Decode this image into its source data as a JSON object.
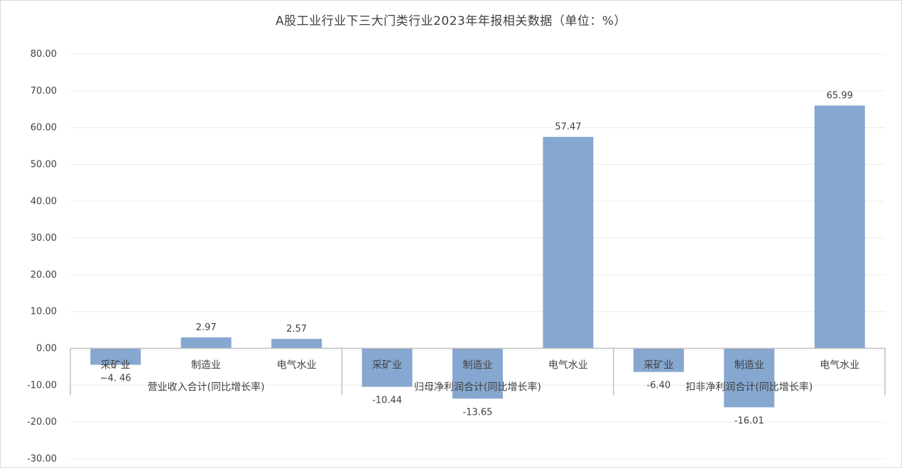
{
  "chart_data": {
    "type": "bar",
    "title": "A股工业行业下三大门类行业2023年年报相关数据（单位：%）",
    "groups": [
      "营业收入合计(同比增长率)",
      "归母净利润合计(同比增长率)",
      "扣非净利润合计(同比增长率)"
    ],
    "categories": [
      "采矿业",
      "制造业",
      "电气水业"
    ],
    "values": [
      [
        -4.46,
        2.97,
        2.57
      ],
      [
        -10.44,
        -13.65,
        57.47
      ],
      [
        -6.4,
        -16.01,
        65.99
      ]
    ],
    "value_labels": [
      [
        "−4. 46",
        "2.97",
        "2.57"
      ],
      [
        "-10.44",
        "-13.65",
        "57.47"
      ],
      [
        "-6.40",
        "-16.01",
        "65.99"
      ]
    ],
    "ylim": [
      -30,
      80
    ],
    "yticks": [
      "80.00",
      "70.00",
      "60.00",
      "50.00",
      "40.00",
      "30.00",
      "20.00",
      "10.00",
      "0.00",
      "-10.00",
      "-20.00",
      "-30.00"
    ],
    "grid": true,
    "bar_color": "#85a7d0"
  }
}
